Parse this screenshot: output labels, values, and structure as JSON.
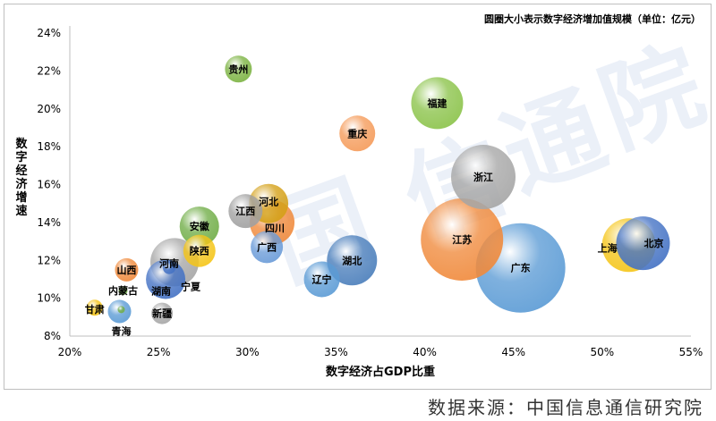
{
  "chart_data": {
    "type": "scatter",
    "title": "圆圈大小表示数字经济增加值规模（单位：亿元）",
    "xlabel": "数字经济占GDP比重",
    "ylabel": "数字经济增速",
    "xlim": [
      20,
      55
    ],
    "ylim": [
      8,
      24
    ],
    "x_ticks": [
      "20%",
      "25%",
      "30%",
      "35%",
      "40%",
      "45%",
      "50%",
      "55%"
    ],
    "y_ticks": [
      "8%",
      "10%",
      "12%",
      "14%",
      "16%",
      "18%",
      "20%",
      "22%",
      "24%"
    ],
    "grid": false,
    "points": [
      {
        "label": "贵州",
        "x": 29.5,
        "y": 22.1,
        "r": 15,
        "color": "#7cb342"
      },
      {
        "label": "福建",
        "x": 40.7,
        "y": 20.3,
        "r": 29,
        "color": "#8bc34a"
      },
      {
        "label": "重庆",
        "x": 36.2,
        "y": 18.7,
        "r": 20,
        "color": "#f59b5a"
      },
      {
        "label": "浙江",
        "x": 43.3,
        "y": 16.4,
        "r": 36,
        "color": "#a6a6a6"
      },
      {
        "label": "江西",
        "x": 29.9,
        "y": 14.6,
        "r": 19,
        "color": "#a0a0a0"
      },
      {
        "label": "河北",
        "x": 31.2,
        "y": 15.0,
        "r": 22,
        "color": "#d4a017"
      },
      {
        "label": "四川",
        "x": 31.4,
        "y": 14.0,
        "r": 25,
        "color": "#f08a3c"
      },
      {
        "label": "安徽",
        "x": 27.3,
        "y": 13.8,
        "r": 22,
        "color": "#70ad47"
      },
      {
        "label": "陕西",
        "x": 27.3,
        "y": 12.5,
        "r": 18,
        "color": "#f5c518"
      },
      {
        "label": "广西",
        "x": 31.1,
        "y": 12.7,
        "r": 18,
        "color": "#6a9bd8"
      },
      {
        "label": "江苏",
        "x": 42.1,
        "y": 13.1,
        "r": 46,
        "color": "#f08a3c"
      },
      {
        "label": "上海",
        "x": 51.5,
        "y": 12.8,
        "r": 30,
        "color": "#f5c518"
      },
      {
        "label": "北京",
        "x": 52.3,
        "y": 12.9,
        "r": 30,
        "color": "#4472c4"
      },
      {
        "label": "广东",
        "x": 45.4,
        "y": 11.6,
        "r": 50,
        "color": "#5b9bd5"
      },
      {
        "label": "湖北",
        "x": 35.9,
        "y": 12.0,
        "r": 28,
        "color": "#4a7ebb"
      },
      {
        "label": "河南",
        "x": 25.9,
        "y": 11.9,
        "r": 27,
        "color": "#a6a6a6"
      },
      {
        "label": "湖南",
        "x": 25.4,
        "y": 11.0,
        "r": 22,
        "color": "#4472c4"
      },
      {
        "label": "辽宁",
        "x": 34.2,
        "y": 11.0,
        "r": 20,
        "color": "#5b9bd5"
      },
      {
        "label": "山西",
        "x": 23.2,
        "y": 11.5,
        "r": 13,
        "color": "#f08a3c"
      },
      {
        "label": "宁夏",
        "x": 25.6,
        "y": 11.6,
        "r": 7,
        "color": "#4472c4"
      },
      {
        "label": "内蒙古",
        "x": 23.0,
        "y": 10.4,
        "r": 5,
        "color": "#70ad47"
      },
      {
        "label": "甘肃",
        "x": 21.4,
        "y": 9.5,
        "r": 9,
        "color": "#f5c518"
      },
      {
        "label": "青海",
        "x": 22.9,
        "y": 9.4,
        "r": 4,
        "color": "#70ad47"
      },
      {
        "label": "新疆",
        "x": 25.2,
        "y": 9.2,
        "r": 12,
        "color": "#a6a6a6"
      },
      {
        "label": "",
        "x": 22.8,
        "y": 9.3,
        "r": 13,
        "color": "#5b9bd5"
      }
    ]
  },
  "source": "数据来源：中国信息通信研究院",
  "watermark": "中国信通院"
}
